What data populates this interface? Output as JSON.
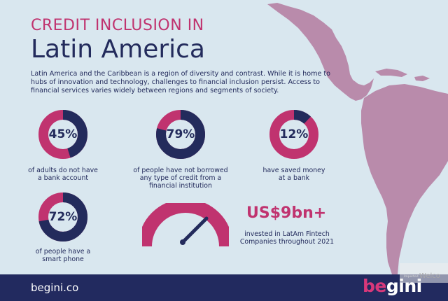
{
  "header": {
    "title_line1": "CREDIT INCLUSION IN",
    "title_line2": "Latin America"
  },
  "intro": "Latin America and the Caribbean is a region of diversity and contrast. While it is home to hubs of innovation and technology, challenges to financial inclusion persist. Access to financial services varies widely between regions and segments of society.",
  "stats": [
    {
      "value": "45%",
      "fraction": 0.45,
      "caption": "of adults do not have a bank account"
    },
    {
      "value": "79%",
      "fraction": 0.79,
      "caption": "of people have not borrowed any type of credit from a financial institution"
    },
    {
      "value": "12%",
      "fraction": 0.12,
      "caption": "have saved money at a bank"
    },
    {
      "value": "72%",
      "fraction": 0.72,
      "caption": "of people have a smart phone"
    }
  ],
  "fintech": {
    "value": "US$9bn+",
    "caption": "invested in LatAm Fintech Companies throughout 2021"
  },
  "footer": {
    "url": "begini.co",
    "brand_prefix": "be",
    "brand_suffix": "gini"
  },
  "overlay": {
    "hint": "Imported",
    "text": "Welco"
  },
  "colors": {
    "background": "#d9e7ef",
    "navy": "#232b5c",
    "magenta": "#c0336f",
    "map": "#b98bab",
    "footer": "#222a5f"
  }
}
